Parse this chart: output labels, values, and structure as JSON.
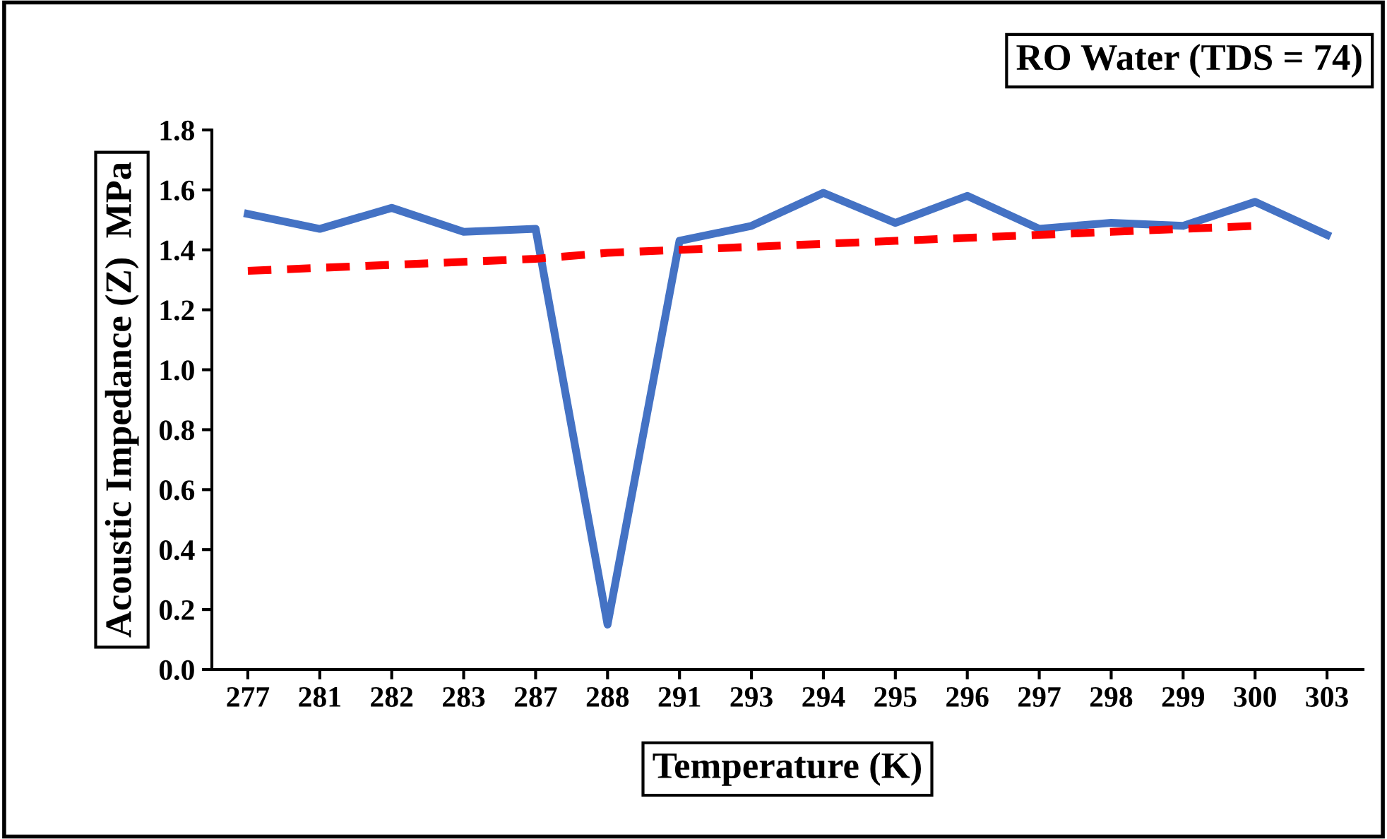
{
  "chart_data": {
    "type": "line",
    "title": "RO Water (TDS = 74)",
    "xlabel": "Temperature (K)",
    "ylabel": "Acoustic Impedance (Z)  MPa",
    "categories": [
      "277",
      "281",
      "282",
      "283",
      "287",
      "288",
      "291",
      "293",
      "294",
      "295",
      "296",
      "297",
      "298",
      "299",
      "300",
      "303"
    ],
    "series": [
      {
        "color": "#4472c4",
        "line_style": "solid",
        "values": [
          1.52,
          1.47,
          1.54,
          1.46,
          1.47,
          0.15,
          1.43,
          1.48,
          1.59,
          1.49,
          1.58,
          1.47,
          1.49,
          1.48,
          1.56,
          1.45
        ]
      },
      {
        "color": "#ff0000",
        "line_style": "dashed",
        "values": [
          1.33,
          1.34,
          1.35,
          1.36,
          1.37,
          1.39,
          1.4,
          1.41,
          1.42,
          1.43,
          1.44,
          1.45,
          1.46,
          1.47,
          1.48,
          null
        ]
      }
    ],
    "ylim": [
      0,
      1.8
    ],
    "yticks": [
      {
        "value": 0,
        "label": "0.0"
      },
      {
        "value": 0.2,
        "label": "0.2"
      },
      {
        "value": 0.4,
        "label": "0.4"
      },
      {
        "value": 0.6,
        "label": "0.6"
      },
      {
        "value": 0.8,
        "label": "0.8"
      },
      {
        "value": 1.0,
        "label": "1.0"
      },
      {
        "value": 1.2,
        "label": "1.2"
      },
      {
        "value": 1.4,
        "label": "1.4"
      },
      {
        "value": 1.6,
        "label": "1.6"
      },
      {
        "value": 1.8,
        "label": "1.8"
      }
    ],
    "grid": false,
    "legend": false,
    "marker": "none"
  }
}
